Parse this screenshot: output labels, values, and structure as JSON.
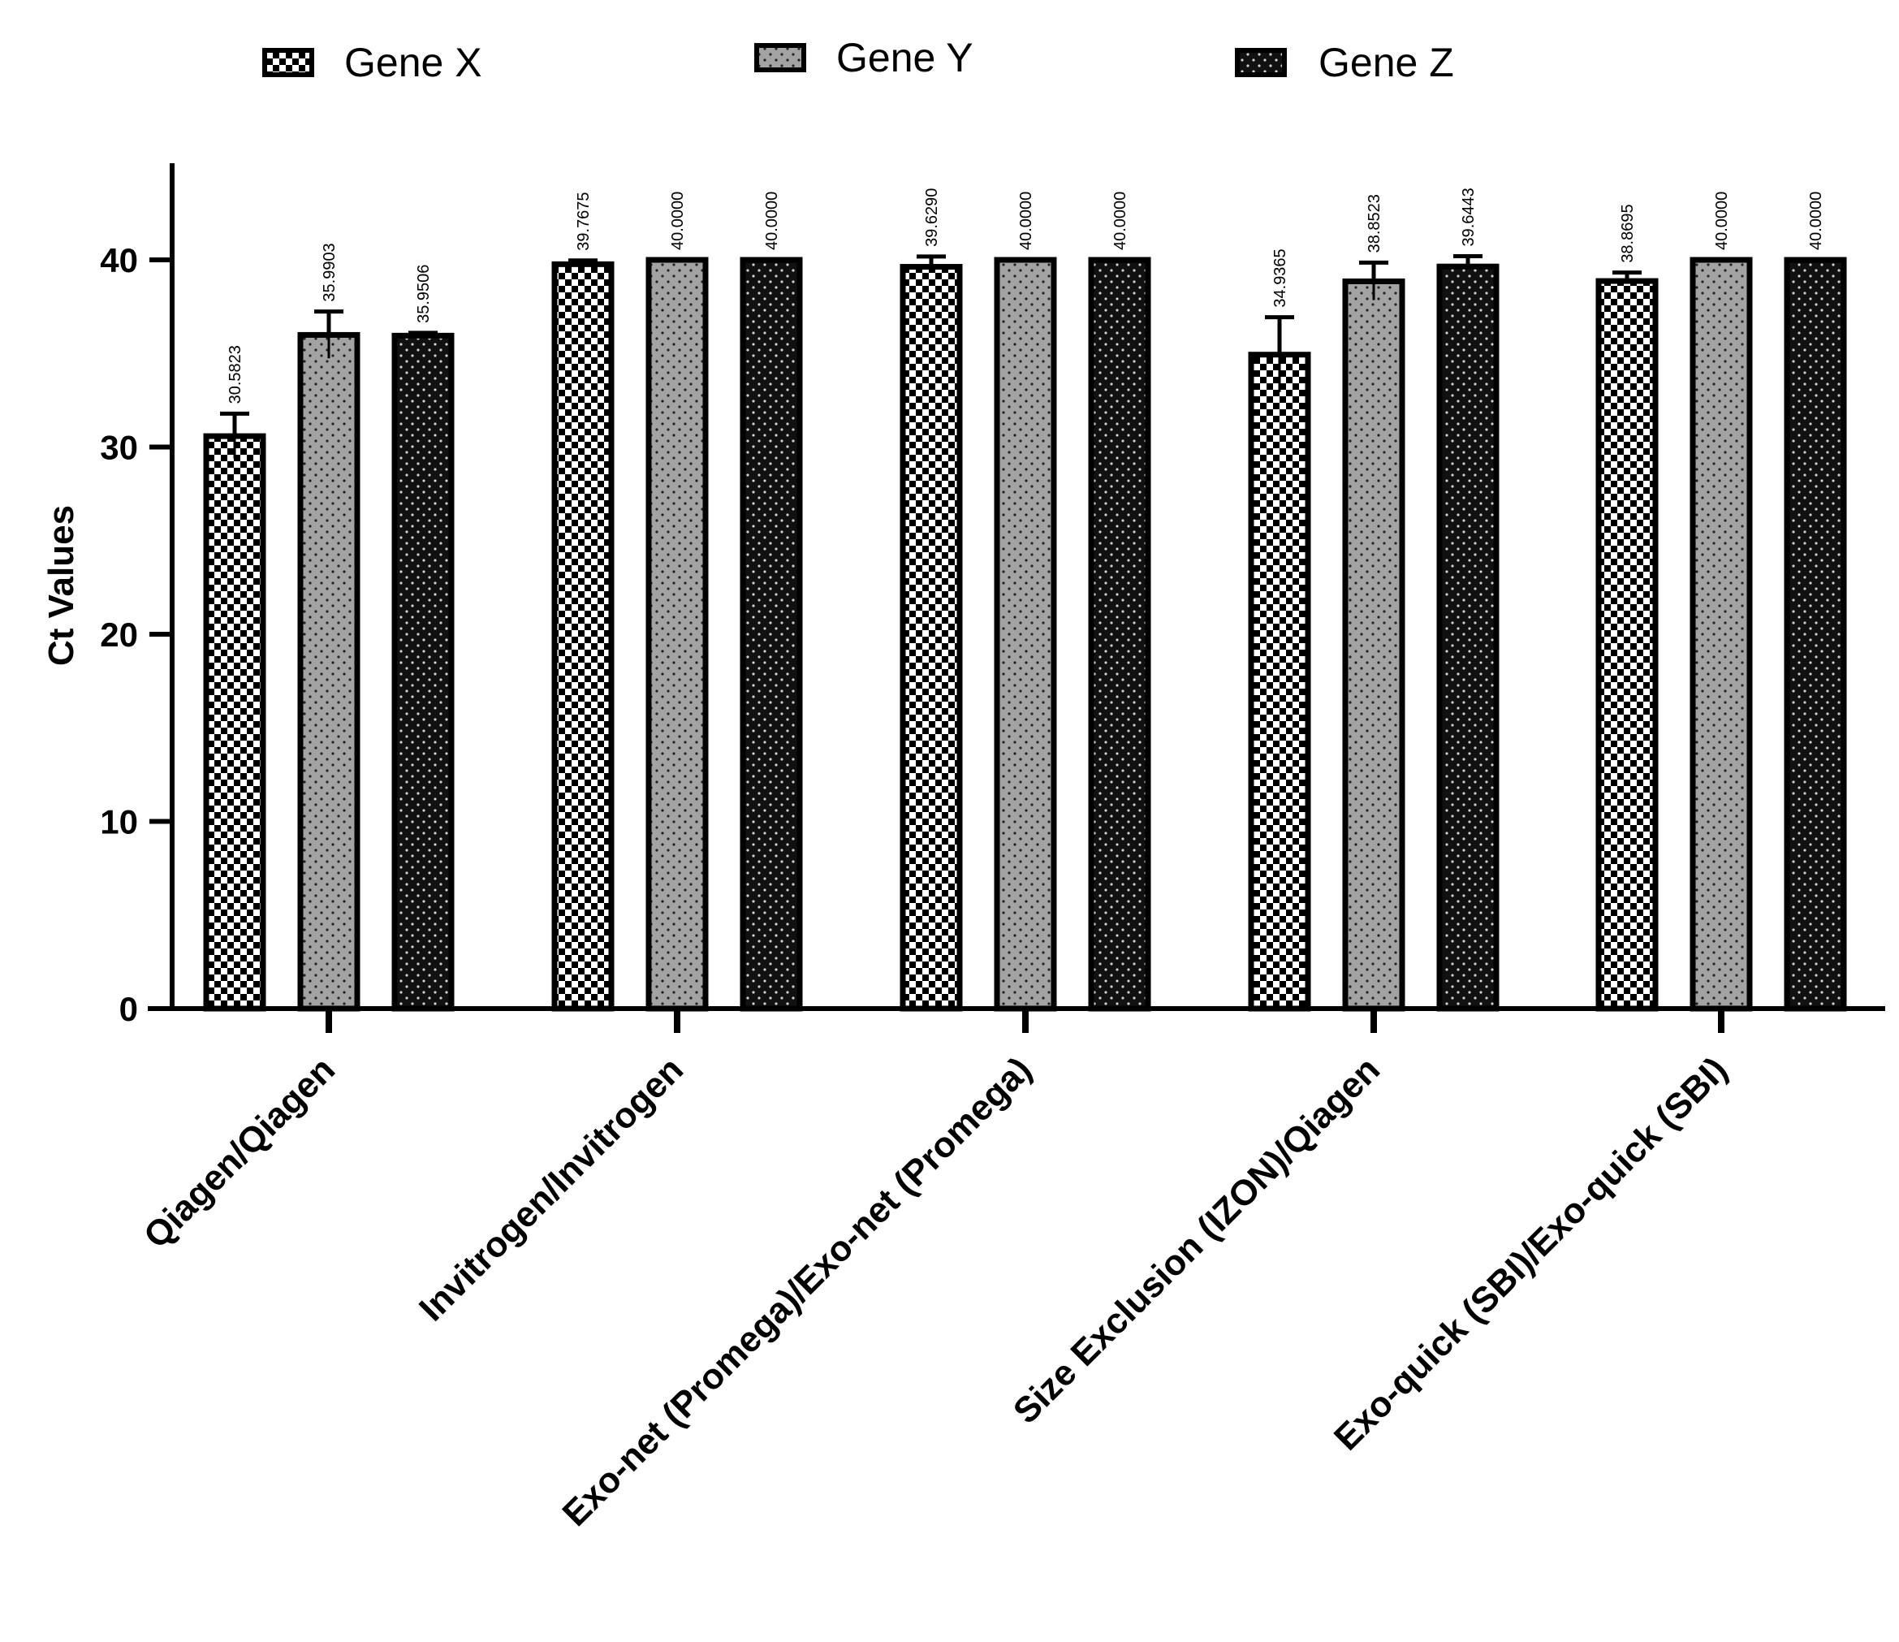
{
  "chart_data": {
    "type": "bar",
    "ylabel": "Ct Values",
    "xlabel": "",
    "ylim": [
      0,
      45
    ],
    "yticks": [
      0,
      10,
      20,
      30,
      40
    ],
    "grid": false,
    "legend_position": "top",
    "categories": [
      "Qiagen/Qiagen",
      "Invitrogen/Invitrogen",
      "Exo-net (Promega)/Exo-net (Promega)",
      "Size Exclusion (IZON)/Qiagen",
      "Exo-quick (SBI)/Exo-quick (SBI)"
    ],
    "series": [
      {
        "name": "Gene X",
        "pattern": "checker",
        "fill": "#ffffff",
        "values": [
          30.5823,
          39.7675,
          39.629,
          34.9365,
          38.8695
        ],
        "labels": [
          "30.5823",
          "39.7675",
          "39.6290",
          "34.9365",
          "38.8695"
        ],
        "errors": [
          1.2,
          0.2,
          0.55,
          2.0,
          0.45
        ]
      },
      {
        "name": "Gene Y",
        "pattern": "dots",
        "fill": "#a3a3a3",
        "values": [
          35.9903,
          40.0,
          40.0,
          38.8523,
          40.0
        ],
        "labels": [
          "35.9903",
          "40.0000",
          "40.0000",
          "38.8523",
          "40.0000"
        ],
        "errors": [
          1.25,
          0,
          0,
          1.0,
          0
        ]
      },
      {
        "name": "Gene Z",
        "pattern": "dots-dark",
        "fill": "#111111",
        "values": [
          35.9506,
          40.0,
          40.0,
          39.6443,
          40.0
        ],
        "labels": [
          "35.9506",
          "40.0000",
          "40.0000",
          "39.6443",
          "40.0000"
        ],
        "errors": [
          0.15,
          0,
          0,
          0.55,
          0
        ]
      }
    ]
  }
}
